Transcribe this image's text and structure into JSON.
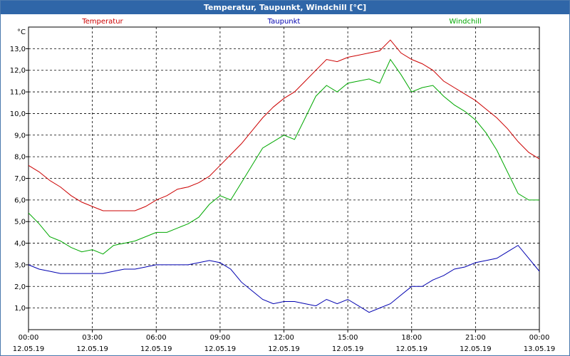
{
  "chart_data": {
    "type": "line",
    "title": "Temperatur, Taupunkt, Windchill [°C]",
    "ylabel": "°C",
    "ylim": [
      0,
      14.0
    ],
    "yticks": [
      1.0,
      2.0,
      3.0,
      4.0,
      5.0,
      6.0,
      7.0,
      8.0,
      9.0,
      10.0,
      11.0,
      12.0,
      13.0
    ],
    "yticklabels": [
      "1,0",
      "2,0",
      "3,0",
      "4,0",
      "5,0",
      "6,0",
      "7,0",
      "8,0",
      "9,0",
      "10,0",
      "11,0",
      "12,0",
      "13,0"
    ],
    "xlim": [
      0,
      24
    ],
    "xticks": [
      0,
      3,
      6,
      9,
      12,
      15,
      18,
      21,
      24
    ],
    "xticklabels_time": [
      "00:00",
      "03:00",
      "06:00",
      "09:00",
      "12:00",
      "15:00",
      "18:00",
      "21:00",
      "00:00"
    ],
    "xticklabels_date": [
      "12.05.19",
      "12.05.19",
      "12.05.19",
      "12.05.19",
      "12.05.19",
      "12.05.19",
      "12.05.19",
      "12.05.19",
      "13.05.19"
    ],
    "grid": true,
    "legend": "top",
    "series": [
      {
        "name": "Temperatur",
        "color": "#cc0000",
        "x": [
          0,
          0.5,
          1,
          1.5,
          2,
          2.5,
          3,
          3.5,
          4,
          4.5,
          5,
          5.5,
          6,
          6.5,
          7,
          7.5,
          8,
          8.5,
          9,
          9.5,
          10,
          10.5,
          11,
          11.5,
          12,
          12.5,
          13,
          13.5,
          14,
          14.5,
          15,
          15.5,
          16,
          16.5,
          17,
          17.5,
          18,
          18.5,
          19,
          19.5,
          20,
          20.5,
          21,
          21.5,
          22,
          22.5,
          23,
          23.5,
          24
        ],
        "values": [
          7.6,
          7.3,
          6.9,
          6.6,
          6.2,
          5.9,
          5.7,
          5.5,
          5.5,
          5.5,
          5.5,
          5.7,
          6.0,
          6.2,
          6.5,
          6.6,
          6.8,
          7.1,
          7.6,
          8.1,
          8.6,
          9.2,
          9.8,
          10.3,
          10.7,
          11.0,
          11.5,
          12.0,
          12.5,
          12.4,
          12.6,
          12.7,
          12.8,
          12.9,
          13.4,
          12.8,
          12.5,
          12.3,
          12.0,
          11.5,
          11.2,
          10.9,
          10.6,
          10.2,
          9.8,
          9.3,
          8.7,
          8.2,
          7.9
        ]
      },
      {
        "name": "Taupunkt",
        "color": "#0000b0",
        "x": [
          0,
          0.5,
          1,
          1.5,
          2,
          2.5,
          3,
          3.5,
          4,
          4.5,
          5,
          5.5,
          6,
          6.5,
          7,
          7.5,
          8,
          8.5,
          9,
          9.5,
          10,
          10.5,
          11,
          11.5,
          12,
          12.5,
          13,
          13.5,
          14,
          14.5,
          15,
          15.5,
          16,
          16.5,
          17,
          17.5,
          18,
          18.5,
          19,
          19.5,
          20,
          20.5,
          21,
          21.5,
          22,
          22.5,
          23,
          23.5,
          24
        ],
        "values": [
          3.0,
          2.8,
          2.7,
          2.6,
          2.6,
          2.6,
          2.6,
          2.6,
          2.7,
          2.8,
          2.8,
          2.9,
          3.0,
          3.0,
          3.0,
          3.0,
          3.1,
          3.2,
          3.1,
          2.8,
          2.2,
          1.8,
          1.4,
          1.2,
          1.3,
          1.3,
          1.2,
          1.1,
          1.4,
          1.2,
          1.4,
          1.1,
          0.8,
          1.0,
          1.2,
          1.6,
          2.0,
          2.0,
          2.3,
          2.5,
          2.8,
          2.9,
          3.1,
          3.2,
          3.3,
          3.6,
          3.9,
          3.3,
          2.7
        ]
      },
      {
        "name": "Windchill",
        "color": "#00a800",
        "x": [
          0,
          0.5,
          1,
          1.5,
          2,
          2.5,
          3,
          3.5,
          4,
          4.5,
          5,
          5.5,
          6,
          6.5,
          7,
          7.5,
          8,
          8.5,
          9,
          9.5,
          10,
          10.5,
          11,
          11.5,
          12,
          12.5,
          13,
          13.5,
          14,
          14.5,
          15,
          15.5,
          16,
          16.5,
          17,
          17.5,
          18,
          18.5,
          19,
          19.5,
          20,
          20.5,
          21,
          21.5,
          22,
          22.5,
          23,
          23.5,
          24
        ],
        "values": [
          5.4,
          4.9,
          4.3,
          4.1,
          3.8,
          3.6,
          3.7,
          3.5,
          3.9,
          4.0,
          4.1,
          4.3,
          4.5,
          4.5,
          4.7,
          4.9,
          5.2,
          5.8,
          6.2,
          6.0,
          6.8,
          7.6,
          8.4,
          8.7,
          9.0,
          8.8,
          9.8,
          10.8,
          11.3,
          11.0,
          11.4,
          11.5,
          11.6,
          11.4,
          12.5,
          11.8,
          11.0,
          11.2,
          11.3,
          10.8,
          10.4,
          10.1,
          9.7,
          9.1,
          8.3,
          7.3,
          6.3,
          6.0,
          6.0
        ]
      }
    ]
  }
}
